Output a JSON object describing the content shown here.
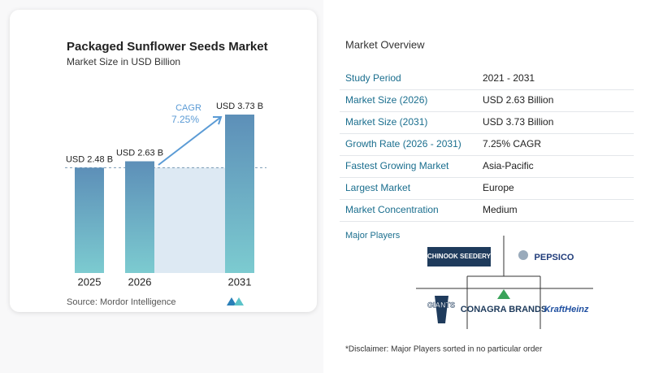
{
  "chart_data": {
    "type": "bar",
    "title": "Packaged Sunflower Seeds Market",
    "subtitle": "Market Size in USD Billion",
    "categories": [
      "2025",
      "2026",
      "2031"
    ],
    "values": [
      2.48,
      2.63,
      3.73
    ],
    "value_labels": [
      "USD 2.48 B",
      "USD 2.63 B",
      "USD 3.73 B"
    ],
    "annotation": {
      "label": "CAGR",
      "value": "7.25%"
    },
    "source": "Source:  Mordor Intelligence"
  },
  "overview": {
    "title": "Market Overview",
    "rows": [
      [
        "Study Period",
        "2021 - 2031"
      ],
      [
        "Market Size (2026)",
        "USD 2.63 Billion"
      ],
      [
        "Market Size (2031)",
        "USD 3.73 Billion"
      ],
      [
        "Growth Rate (2026 - 2031)",
        "7.25% CAGR"
      ],
      [
        "Fastest Growing Market",
        "Asia-Pacific"
      ],
      [
        "Largest Market",
        "Europe"
      ],
      [
        "Market Concentration",
        "Medium"
      ]
    ]
  },
  "players": {
    "title": "Major Players",
    "names": [
      "CHINOOK SEEDERY",
      "PEPSICO",
      "GIANTS",
      "CONAGRA BRANDS",
      "KraftHeinz"
    ]
  },
  "disclaimer": "*Disclaimer: Major Players sorted in no particular order"
}
